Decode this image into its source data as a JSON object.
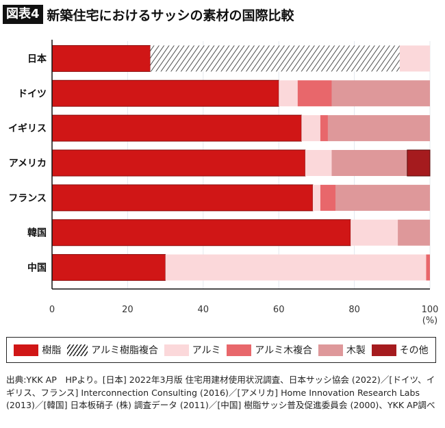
{
  "header": {
    "figure_no": "図表4",
    "title": "新築住宅におけるサッシの素材の国際比較"
  },
  "chart_data": {
    "type": "bar",
    "orientation": "horizontal",
    "stacked": true,
    "categories": [
      "日本",
      "ドイツ",
      "イギリス",
      "アメリカ",
      "フランス",
      "韓国",
      "中国"
    ],
    "series": [
      {
        "name": "樹脂",
        "color": "#d01616",
        "pattern": "solid",
        "values": [
          26,
          60,
          66,
          67,
          69,
          79,
          30
        ]
      },
      {
        "name": "アルミ樹脂複合",
        "color": "#222222",
        "pattern": "hatch",
        "values": [
          66,
          0,
          0,
          0,
          0,
          0,
          0
        ]
      },
      {
        "name": "アルミ",
        "color": "#fbd8da",
        "pattern": "solid",
        "values": [
          8,
          5,
          5,
          7,
          2,
          12.5,
          69
        ]
      },
      {
        "name": "アルミ木複合",
        "color": "#e8676b",
        "pattern": "solid",
        "values": [
          0,
          9,
          2,
          0,
          4,
          0,
          1
        ]
      },
      {
        "name": "木製",
        "color": "#de989a",
        "pattern": "solid",
        "values": [
          0,
          26,
          27,
          20,
          25,
          8.5,
          0
        ]
      },
      {
        "name": "その他",
        "color": "#a51b1e",
        "pattern": "solid",
        "values": [
          0,
          0,
          0,
          6,
          0,
          0,
          0
        ]
      }
    ],
    "xlim": [
      0,
      100
    ],
    "xticks": [
      "0",
      "20",
      "40",
      "60",
      "80",
      "100"
    ],
    "xunit": "(%)",
    "grid": true,
    "legend": "bottom"
  },
  "source_note": "出典:YKK AP　HPより。[日本] 2022年3月版 住宅用建材使用状況調査、日本サッシ協会 (2022)／[ドイツ、イギリス、フランス] Interconnection Consulting (2016)／[アメリカ] Home Innovation Research Labs (2013)／[韓国] 日本板硝子 (株) 調査データ (2011)／[中国] 樹脂サッシ普及促進委員会 (2000)、YKK AP調べ"
}
